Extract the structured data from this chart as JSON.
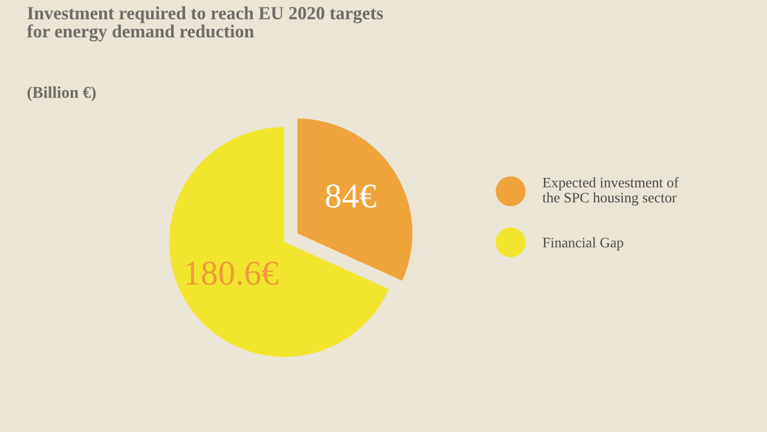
{
  "chart_data": {
    "type": "pie",
    "title": "Investment required to reach EU 2020 targets\nfor energy demand reduction",
    "subtitle": "(Billion €)",
    "categories": [
      "Expected investment of\nthe SPC housing sector",
      "Financial Gap"
    ],
    "values": [
      84,
      180.6
    ],
    "colors": [
      "#eea43a",
      "#f2e52e"
    ],
    "value_labels": [
      "84€",
      "180.6€"
    ],
    "legend": "right"
  }
}
